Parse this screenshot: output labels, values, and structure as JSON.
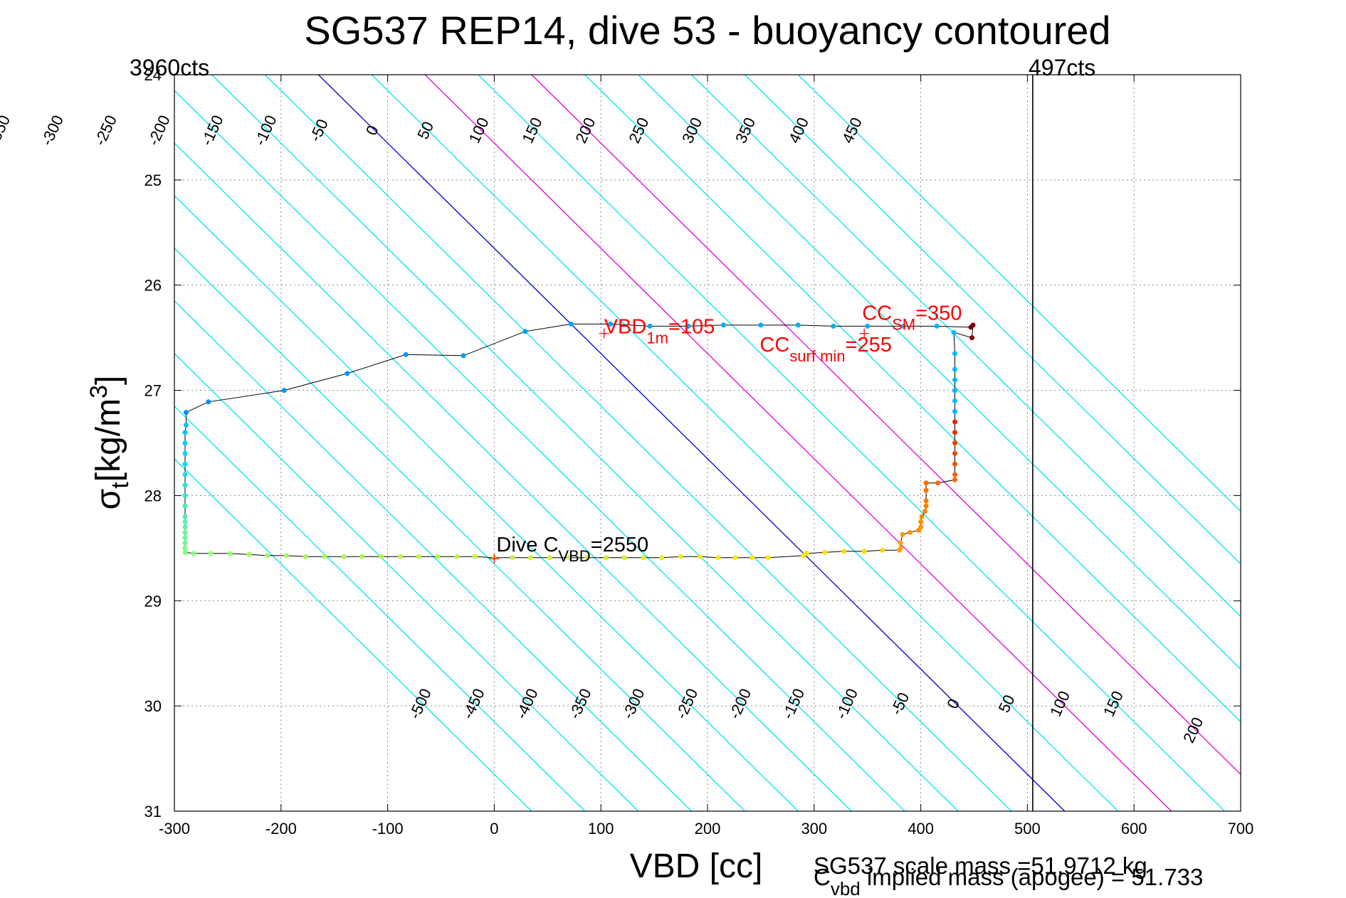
{
  "chart_data": {
    "type": "scatter",
    "title": "SG537 REP14, dive 53 - buoyancy contoured",
    "xlabel": "VBD [cc]",
    "ylabel_main": "σ",
    "ylabel_sub": "t",
    "ylabel_unit": "[kg/m",
    "ylabel_sup": "3",
    "ylabel_close": "]",
    "xlim": [
      -300,
      700
    ],
    "ylim": [
      24,
      31
    ],
    "y_reversed": true,
    "grid": true,
    "x_ticks": [
      -300,
      -200,
      -100,
      0,
      100,
      200,
      300,
      400,
      500,
      600,
      700
    ],
    "x_tick_labels": [
      "-300",
      "-200",
      "-100",
      "0",
      "100",
      "200",
      "300",
      "400",
      "500",
      "600",
      "700"
    ],
    "y_ticks": [
      24,
      25,
      26,
      27,
      28,
      29,
      30,
      31
    ],
    "y_tick_labels": [
      "24",
      "25",
      "26",
      "27",
      "28",
      "29",
      "30",
      "31"
    ],
    "corner_left": "3960cts",
    "corner_right": "497cts",
    "footer_line1": "SG537 scale mass =51.9712 kg",
    "footer_line2_main": "C",
    "footer_line2_sub": "vbd",
    "footer_line2_rest": " implied mass (apogee) = 51.733",
    "buoyancy_slope_cc_per_sigma": 100,
    "contour_anchor_sigma": 28.6,
    "contours": [
      {
        "level": -500,
        "label": "-500",
        "color": "#00e5ee"
      },
      {
        "level": -450,
        "label": "-450",
        "color": "#00e5ee"
      },
      {
        "level": -400,
        "label": "-400",
        "color": "#00e5ee"
      },
      {
        "level": -350,
        "label": "-350",
        "color": "#00e5ee"
      },
      {
        "level": -300,
        "label": "-300",
        "color": "#00e5ee"
      },
      {
        "level": -250,
        "label": "-250",
        "color": "#00e5ee"
      },
      {
        "level": -200,
        "label": "-200",
        "color": "#00e5ee"
      },
      {
        "level": -150,
        "label": "-150",
        "color": "#00e5ee"
      },
      {
        "level": -100,
        "label": "-100",
        "color": "#00e5ee"
      },
      {
        "level": -50,
        "label": "-50",
        "color": "#00e5ee"
      },
      {
        "level": 0,
        "label": "0",
        "color": "#0000cd"
      },
      {
        "level": 50,
        "label": "50",
        "color": "#00e5ee"
      },
      {
        "level": 100,
        "label": "100",
        "color": "#e000e0"
      },
      {
        "level": 150,
        "label": "150",
        "color": "#00e5ee"
      },
      {
        "level": 200,
        "label": "200",
        "color": "#e000e0"
      },
      {
        "level": 250,
        "label": "250",
        "color": "#00e5ee"
      },
      {
        "level": 300,
        "label": "300",
        "color": "#00e5ee"
      },
      {
        "level": 350,
        "label": "350",
        "color": "#00e5ee"
      },
      {
        "level": 400,
        "label": "400",
        "color": "#00e5ee"
      },
      {
        "level": 450,
        "label": "450",
        "color": "#00e5ee"
      }
    ],
    "vertical_marker": {
      "x": 505,
      "color": "#000000"
    },
    "series": [
      {
        "points": [
          [
            -290,
            28.54
          ],
          [
            -290,
            28.5
          ],
          [
            -290,
            28.45
          ],
          [
            -290,
            28.4
          ],
          [
            -290,
            28.35
          ],
          [
            -290,
            28.3
          ],
          [
            -290,
            28.25
          ],
          [
            -290,
            28.2
          ],
          [
            -290,
            28.1
          ],
          [
            -290,
            28.0
          ],
          [
            -290,
            27.9
          ],
          [
            -290,
            27.8
          ],
          [
            -290,
            27.7
          ],
          [
            -290,
            27.6
          ],
          [
            -290,
            27.5
          ],
          [
            -290,
            27.4
          ],
          [
            -289,
            27.33
          ],
          [
            -289,
            27.21
          ],
          [
            -268,
            27.11
          ],
          [
            -197,
            27.0
          ],
          [
            -138,
            26.84
          ],
          [
            -83,
            26.66
          ],
          [
            -29,
            26.67
          ],
          [
            29,
            26.44
          ],
          [
            72,
            26.37
          ],
          [
            109,
            26.37
          ],
          [
            146,
            26.39
          ],
          [
            182,
            26.39
          ],
          [
            215,
            26.38
          ],
          [
            250,
            26.38
          ],
          [
            285,
            26.38
          ],
          [
            318,
            26.39
          ],
          [
            350,
            26.39
          ],
          [
            384,
            26.39
          ],
          [
            415,
            26.39
          ],
          [
            447,
            26.4
          ],
          [
            449,
            26.38
          ],
          [
            448,
            26.5
          ],
          [
            431,
            26.45
          ],
          [
            432,
            26.65
          ],
          [
            432,
            26.8
          ],
          [
            432,
            26.9
          ],
          [
            432,
            27.0
          ],
          [
            432,
            27.1
          ],
          [
            432,
            27.2
          ],
          [
            432,
            27.3
          ],
          [
            432,
            27.4
          ],
          [
            432,
            27.5
          ],
          [
            432,
            27.6
          ],
          [
            432,
            27.7
          ],
          [
            432,
            27.8
          ],
          [
            432,
            27.85
          ],
          [
            416,
            27.88
          ],
          [
            405,
            27.88
          ],
          [
            405,
            27.95
          ],
          [
            405,
            28.05
          ],
          [
            405,
            28.1
          ],
          [
            404,
            28.15
          ],
          [
            401,
            28.2
          ],
          [
            400,
            28.25
          ],
          [
            400,
            28.3
          ],
          [
            398,
            28.33
          ],
          [
            390,
            28.35
          ],
          [
            383,
            28.37
          ],
          [
            381,
            28.45
          ],
          [
            381,
            28.5
          ],
          [
            380,
            28.52
          ],
          [
            364,
            28.52
          ],
          [
            347,
            28.53
          ],
          [
            328,
            28.53
          ],
          [
            310,
            28.54
          ],
          [
            293,
            28.55
          ],
          [
            290,
            28.57
          ],
          [
            257,
            28.59
          ],
          [
            242,
            28.59
          ],
          [
            226,
            28.59
          ],
          [
            210,
            28.59
          ],
          [
            193,
            28.58
          ],
          [
            175,
            28.58
          ],
          [
            157,
            28.59
          ],
          [
            140,
            28.59
          ],
          [
            122,
            28.59
          ],
          [
            105,
            28.59
          ],
          [
            87,
            28.59
          ],
          [
            70,
            28.59
          ],
          [
            52,
            28.59
          ],
          [
            34,
            28.59
          ],
          [
            17,
            28.59
          ],
          [
            0,
            28.59
          ],
          [
            -18,
            28.58
          ],
          [
            -35,
            28.58
          ],
          [
            -53,
            28.58
          ],
          [
            -71,
            28.58
          ],
          [
            -88,
            28.58
          ],
          [
            -106,
            28.58
          ],
          [
            -124,
            28.58
          ],
          [
            -141,
            28.58
          ],
          [
            -159,
            28.58
          ],
          [
            -177,
            28.58
          ],
          [
            -195,
            28.57
          ],
          [
            -213,
            28.57
          ],
          [
            -230,
            28.56
          ],
          [
            -248,
            28.55
          ],
          [
            -266,
            28.55
          ],
          [
            -282,
            28.55
          ],
          [
            -290,
            28.54
          ]
        ]
      }
    ],
    "annotations": [
      {
        "x": 103,
        "y": 26.46,
        "main": "VBD",
        "sub": "1m",
        "tail": "=105",
        "color": "#ff0000",
        "size": 29
      },
      {
        "x": 249,
        "y": 26.63,
        "main": "CC",
        "sub": "surf min",
        "tail": "=255",
        "color": "#ff0000",
        "size": 29
      },
      {
        "x": 345,
        "y": 26.33,
        "main": "CC",
        "sub": "SM",
        "tail": "=350",
        "color": "#ff0000",
        "size": 29
      },
      {
        "x": 2,
        "y": 28.53,
        "main": "Dive C",
        "sub": "VBD",
        "tail": "=2550",
        "color": "#000000",
        "size": 29
      }
    ],
    "plus_markers": [
      {
        "x": 103,
        "y": 26.46
      },
      {
        "x": 347,
        "y": 26.46
      },
      {
        "x": 0,
        "y": 28.6
      }
    ],
    "colors": {
      "contour": "#00e5ee",
      "zero_contour": "#0000cd",
      "highlight_contour": "#e000e0",
      "track_line": "#000000",
      "marker": "#ff0000"
    }
  }
}
